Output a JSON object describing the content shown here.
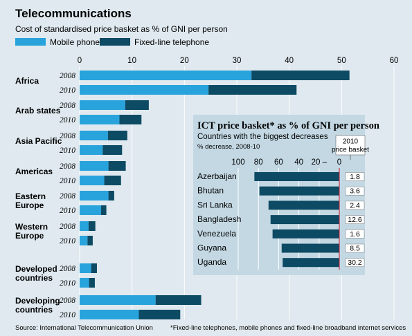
{
  "chart_data": [
    {
      "type": "bar",
      "orientation": "horizontal",
      "stacked": true,
      "title": "Telecommunications",
      "subtitle": "Cost of standardised price basket as % of GNI per person",
      "source": "Source: International Telecommunication Union",
      "xlim": [
        0,
        60
      ],
      "x_ticks": [
        0,
        10,
        20,
        30,
        40,
        50,
        60
      ],
      "grid": true,
      "legend_position": "top",
      "series": [
        {
          "name": "Mobile phone",
          "color": "#29a3dc"
        },
        {
          "name": "Fixed-line telephone",
          "color": "#0d4a63"
        }
      ],
      "groups": [
        {
          "label": "Africa",
          "rows": [
            {
              "year": "2008",
              "mobile": 32.8,
              "fixed": 18.7
            },
            {
              "year": "2010",
              "mobile": 24.6,
              "fixed": 16.8
            }
          ]
        },
        {
          "label": "Arab states",
          "rows": [
            {
              "year": "2008",
              "mobile": 8.7,
              "fixed": 4.5
            },
            {
              "year": "2010",
              "mobile": 7.6,
              "fixed": 4.2
            }
          ]
        },
        {
          "label": "Asia Pacific",
          "rows": [
            {
              "year": "2008",
              "mobile": 5.4,
              "fixed": 3.7
            },
            {
              "year": "2010",
              "mobile": 4.4,
              "fixed": 3.7
            }
          ]
        },
        {
          "label": "Americas",
          "rows": [
            {
              "year": "2008",
              "mobile": 5.5,
              "fixed": 3.3
            },
            {
              "year": "2010",
              "mobile": 4.7,
              "fixed": 3.2
            }
          ]
        },
        {
          "label": "Eastern Europe",
          "rows": [
            {
              "year": "2008",
              "mobile": 5.5,
              "fixed": 1.1
            },
            {
              "year": "2010",
              "mobile": 4.1,
              "fixed": 1.0
            }
          ]
        },
        {
          "label": "Western Europe",
          "rows": [
            {
              "year": "2008",
              "mobile": 1.7,
              "fixed": 1.3
            },
            {
              "year": "2010",
              "mobile": 1.5,
              "fixed": 1.0
            }
          ]
        },
        {
          "label": "Developed countries",
          "rows": [
            {
              "year": "2008",
              "mobile": 2.2,
              "fixed": 1.1
            },
            {
              "year": "2010",
              "mobile": 1.8,
              "fixed": 1.1
            }
          ]
        },
        {
          "label": "Developing countries",
          "rows": [
            {
              "year": "2008",
              "mobile": 14.5,
              "fixed": 8.7
            },
            {
              "year": "2010",
              "mobile": 11.3,
              "fixed": 7.9
            }
          ]
        }
      ]
    },
    {
      "type": "bar",
      "orientation": "horizontal",
      "reversed_axis": true,
      "title": "ICT price basket* as % of GNI per person",
      "subtitle": "Countries with the biggest decreases",
      "xlabel": "% decrease, 2008-10",
      "value_column_label": "2010 price basket",
      "xlim": [
        0,
        100
      ],
      "x_ticks": [
        100,
        80,
        60,
        40,
        20,
        0
      ],
      "x_tick_labels": [
        "100",
        "80",
        "60",
        "40",
        "20 –",
        "0"
      ],
      "color": "#0d4a63",
      "bars": [
        {
          "country": "Azerbaijan",
          "decrease": 84,
          "price_basket_2010": "1.8"
        },
        {
          "country": "Bhutan",
          "decrease": 79,
          "price_basket_2010": "3.6"
        },
        {
          "country": "Sri Lanka",
          "decrease": 70,
          "price_basket_2010": "2.4"
        },
        {
          "country": "Bangladesh",
          "decrease": 68,
          "price_basket_2010": "12.6"
        },
        {
          "country": "Venezuela",
          "decrease": 66,
          "price_basket_2010": "1.6"
        },
        {
          "country": "Guyana",
          "decrease": 57,
          "price_basket_2010": "8.5"
        },
        {
          "country": "Uganda",
          "decrease": 56,
          "price_basket_2010": "30.2"
        }
      ]
    }
  ],
  "footnote": "*Fixed-line telephones, mobile phones and fixed-line broadband internet services"
}
